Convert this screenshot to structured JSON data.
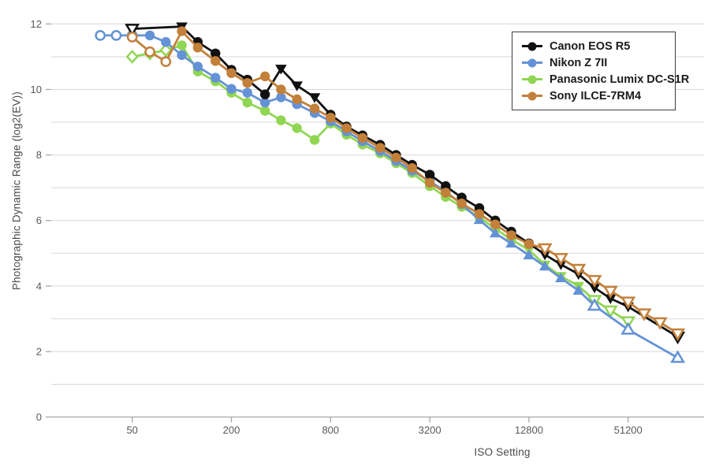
{
  "chart_data": {
    "type": "line",
    "title": "",
    "xlabel": "ISO Setting",
    "ylabel": "Photographic Dynamic Range (log2(EV))",
    "x_scale": "log2",
    "x_ticks": [
      50,
      200,
      800,
      3200,
      12800,
      51200
    ],
    "y_ticks": [
      0,
      2,
      4,
      6,
      8,
      10,
      12
    ],
    "y_gridlines": [
      1,
      2,
      3,
      4,
      5,
      6,
      7,
      8,
      9,
      10,
      11,
      12
    ],
    "ylim": [
      0,
      12.4
    ],
    "xlim": [
      16,
      155000
    ],
    "grid": "horizontal-only",
    "legend_position": "top-right",
    "marker_legend": {
      "c": "filled circle (native ISO, measured)",
      "o": "open circle (extended ISO)",
      "t": "filled triangle-down",
      "to": "open triangle-down (extended ISO)",
      "u": "filled triangle-up",
      "uo": "open triangle-up (extended ISO)",
      "do": "open diamond (extended ISO)"
    },
    "series": [
      {
        "name": "Canon EOS R5",
        "color": "#111111",
        "points": [
          [
            50,
            11.85,
            "to"
          ],
          [
            100,
            11.92,
            "t"
          ],
          [
            125,
            11.45,
            "c"
          ],
          [
            160,
            11.1,
            "c"
          ],
          [
            200,
            10.6,
            "c"
          ],
          [
            250,
            10.3,
            "c"
          ],
          [
            320,
            9.85,
            "c"
          ],
          [
            400,
            10.63,
            "t"
          ],
          [
            500,
            10.12,
            "t"
          ],
          [
            640,
            9.76,
            "t"
          ],
          [
            800,
            9.23,
            "c"
          ],
          [
            1000,
            8.87,
            "c"
          ],
          [
            1250,
            8.6,
            "c"
          ],
          [
            1600,
            8.31,
            "c"
          ],
          [
            2000,
            8.0,
            "c"
          ],
          [
            2500,
            7.7,
            "c"
          ],
          [
            3200,
            7.4,
            "c"
          ],
          [
            4000,
            7.05,
            "c"
          ],
          [
            5000,
            6.7,
            "c"
          ],
          [
            6400,
            6.38,
            "c"
          ],
          [
            8000,
            6.0,
            "c"
          ],
          [
            10000,
            5.66,
            "c"
          ],
          [
            12800,
            5.3,
            "c"
          ],
          [
            16000,
            4.96,
            "t"
          ],
          [
            20000,
            4.66,
            "t"
          ],
          [
            25600,
            4.36,
            "t"
          ],
          [
            32000,
            3.95,
            "t"
          ],
          [
            40000,
            3.62,
            "t"
          ],
          [
            51200,
            3.37,
            "t"
          ],
          [
            102400,
            2.45,
            "to"
          ]
        ]
      },
      {
        "name": "Nikon Z 7II",
        "color": "#6492d6",
        "points": [
          [
            32,
            11.65,
            "o"
          ],
          [
            40,
            11.65,
            "o"
          ],
          [
            50,
            11.65,
            "o"
          ],
          [
            64,
            11.65,
            "c"
          ],
          [
            80,
            11.45,
            "c"
          ],
          [
            100,
            11.05,
            "c"
          ],
          [
            125,
            10.7,
            "c"
          ],
          [
            160,
            10.36,
            "c"
          ],
          [
            200,
            10.02,
            "c"
          ],
          [
            250,
            9.9,
            "c"
          ],
          [
            320,
            9.6,
            "c"
          ],
          [
            400,
            9.76,
            "c"
          ],
          [
            500,
            9.55,
            "c"
          ],
          [
            640,
            9.28,
            "c"
          ],
          [
            800,
            9.03,
            "c"
          ],
          [
            1000,
            8.72,
            "c"
          ],
          [
            1250,
            8.42,
            "c"
          ],
          [
            1600,
            8.12,
            "c"
          ],
          [
            2000,
            7.82,
            "c"
          ],
          [
            2500,
            7.52,
            "c"
          ],
          [
            3200,
            7.2,
            "c"
          ],
          [
            4000,
            6.88,
            "c"
          ],
          [
            5000,
            6.5,
            "c"
          ],
          [
            6400,
            6.02,
            "u"
          ],
          [
            8000,
            5.61,
            "u"
          ],
          [
            10000,
            5.3,
            "u"
          ],
          [
            12800,
            4.94,
            "u"
          ],
          [
            16000,
            4.6,
            "u"
          ],
          [
            20000,
            4.24,
            "u"
          ],
          [
            25600,
            3.86,
            "u"
          ],
          [
            32000,
            3.4,
            "uo"
          ],
          [
            51200,
            2.67,
            "uo"
          ],
          [
            102400,
            1.81,
            "uo"
          ]
        ]
      },
      {
        "name": "Panasonic Lumix DC-S1R",
        "color": "#90d653",
        "points": [
          [
            50,
            11.0,
            "do"
          ],
          [
            64,
            11.1,
            "do"
          ],
          [
            80,
            11.2,
            "do"
          ],
          [
            100,
            11.35,
            "c"
          ],
          [
            125,
            10.55,
            "c"
          ],
          [
            160,
            10.25,
            "c"
          ],
          [
            200,
            9.9,
            "c"
          ],
          [
            250,
            9.6,
            "c"
          ],
          [
            320,
            9.35,
            "c"
          ],
          [
            400,
            9.06,
            "c"
          ],
          [
            500,
            8.82,
            "c"
          ],
          [
            640,
            8.46,
            "c"
          ],
          [
            800,
            8.96,
            "c"
          ],
          [
            1000,
            8.62,
            "c"
          ],
          [
            1250,
            8.32,
            "c"
          ],
          [
            1600,
            8.05,
            "c"
          ],
          [
            2000,
            7.75,
            "c"
          ],
          [
            2500,
            7.45,
            "c"
          ],
          [
            3200,
            7.05,
            "c"
          ],
          [
            4000,
            6.72,
            "c"
          ],
          [
            5000,
            6.42,
            "c"
          ],
          [
            6400,
            6.1,
            "c"
          ],
          [
            8000,
            5.75,
            "c"
          ],
          [
            10000,
            5.42,
            "c"
          ],
          [
            12800,
            5.1,
            "t"
          ],
          [
            16000,
            4.65,
            "t"
          ],
          [
            20000,
            4.3,
            "t"
          ],
          [
            25600,
            4.0,
            "t"
          ],
          [
            32000,
            3.57,
            "to"
          ],
          [
            40000,
            3.25,
            "to"
          ],
          [
            51200,
            2.92,
            "to"
          ]
        ]
      },
      {
        "name": "Sony ILCE-7RM4",
        "color": "#c3803a",
        "points": [
          [
            50,
            11.6,
            "o"
          ],
          [
            64,
            11.15,
            "o"
          ],
          [
            80,
            10.85,
            "o"
          ],
          [
            100,
            11.78,
            "c"
          ],
          [
            125,
            11.28,
            "c"
          ],
          [
            160,
            10.87,
            "c"
          ],
          [
            200,
            10.5,
            "c"
          ],
          [
            250,
            10.2,
            "c"
          ],
          [
            320,
            10.4,
            "c"
          ],
          [
            400,
            10.0,
            "c"
          ],
          [
            500,
            9.7,
            "c"
          ],
          [
            640,
            9.42,
            "c"
          ],
          [
            800,
            9.14,
            "c"
          ],
          [
            1000,
            8.82,
            "c"
          ],
          [
            1250,
            8.52,
            "c"
          ],
          [
            1600,
            8.22,
            "c"
          ],
          [
            2000,
            7.92,
            "c"
          ],
          [
            2500,
            7.6,
            "c"
          ],
          [
            3200,
            7.15,
            "c"
          ],
          [
            4000,
            6.85,
            "c"
          ],
          [
            5000,
            6.52,
            "c"
          ],
          [
            6400,
            6.2,
            "c"
          ],
          [
            8000,
            5.88,
            "c"
          ],
          [
            10000,
            5.55,
            "c"
          ],
          [
            12800,
            5.28,
            "c"
          ],
          [
            16000,
            5.15,
            "to"
          ],
          [
            20000,
            4.85,
            "to"
          ],
          [
            25600,
            4.52,
            "to"
          ],
          [
            32000,
            4.18,
            "to"
          ],
          [
            40000,
            3.85,
            "to"
          ],
          [
            51200,
            3.52,
            "to"
          ],
          [
            64000,
            3.16,
            "to"
          ],
          [
            80000,
            2.89,
            "to"
          ],
          [
            102400,
            2.55,
            "to"
          ]
        ]
      }
    ]
  },
  "colors": {
    "gridline": "#d8d8d8",
    "axis_line": "#a8a8a8",
    "tick_label": "#595959",
    "axis_title": "#4a4a4a",
    "legend_border": "#3c3c3c",
    "background": "#ffffff"
  }
}
